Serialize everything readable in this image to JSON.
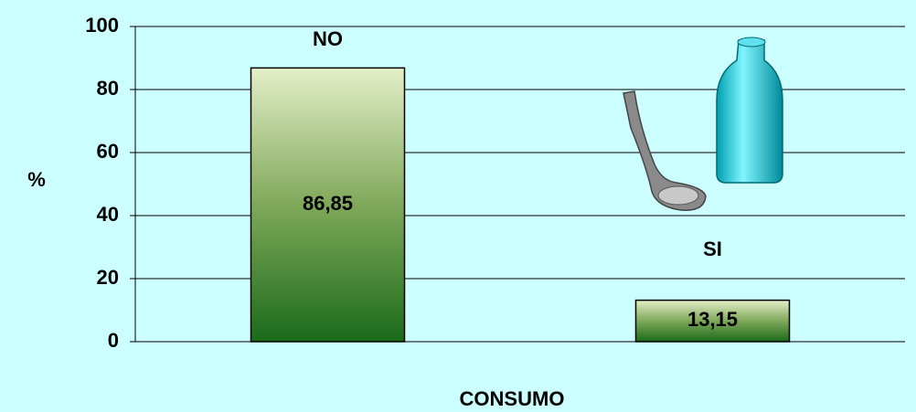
{
  "chart_data": {
    "type": "bar",
    "categories": [
      "NO",
      "SI"
    ],
    "values": [
      86.85,
      13.15
    ],
    "value_labels": [
      "86,85",
      "13,15"
    ],
    "y_label": "%",
    "x_label": "CONSUMO",
    "color": "#1a6b1a",
    "ylim": [
      0,
      100
    ],
    "yticks": [
      0,
      20,
      40,
      60,
      80,
      100
    ],
    "grid": true
  }
}
